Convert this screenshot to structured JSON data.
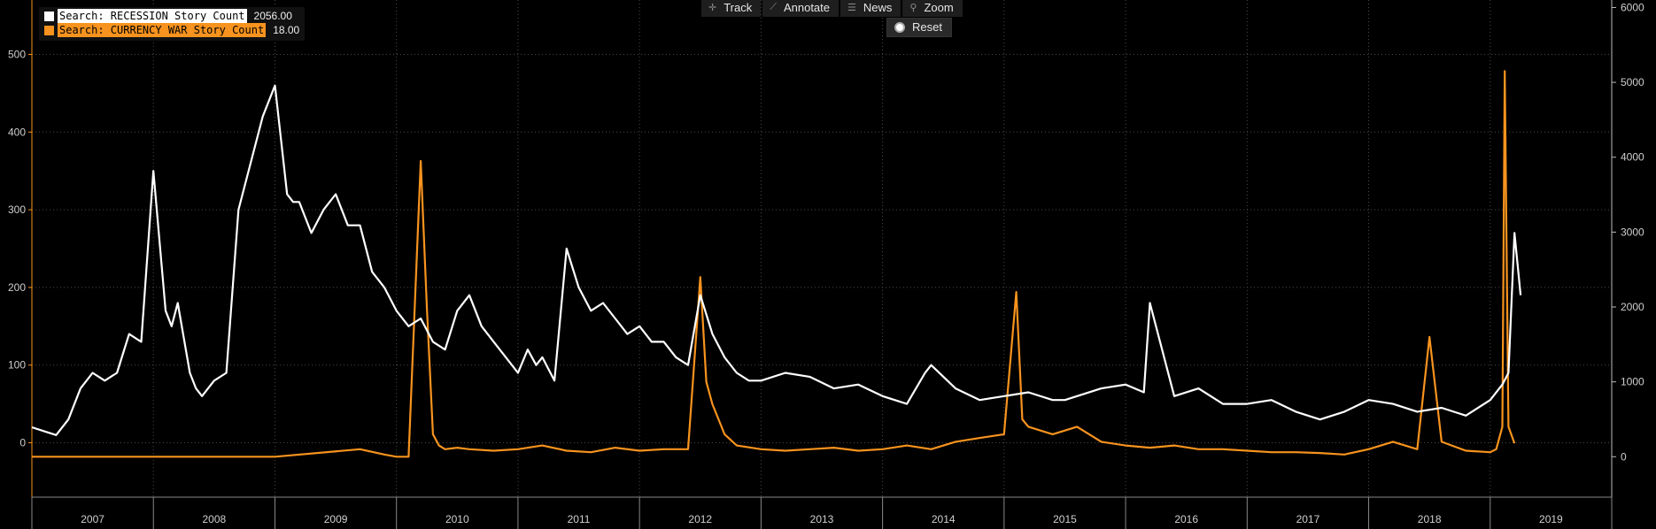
{
  "toolbar": {
    "track_label": "Track",
    "annotate_label": "Annotate",
    "news_label": "News",
    "zoom_label": "Zoom",
    "reset_label": "Reset"
  },
  "legend": {
    "series1_label": "Search: RECESSION Story Count",
    "series1_value": "2056.00",
    "series2_label": "Search: CURRENCY WAR Story Count",
    "series2_value": "18.00"
  },
  "colors": {
    "background": "#000000",
    "recession": "#ffffff",
    "currency_war": "#f7931e",
    "grid": "#5a5a5a"
  },
  "chart_data": {
    "type": "line",
    "title": "",
    "xlabel": "",
    "grid": true,
    "legend_position": "top-left",
    "x_axis": {
      "type": "year",
      "start_year": 2007,
      "end_year": 2019,
      "tick_labels": [
        "2007",
        "2008",
        "2009",
        "2010",
        "2011",
        "2012",
        "2013",
        "2014",
        "2015",
        "2016",
        "2017",
        "2018",
        "2019"
      ]
    },
    "y_left": {
      "label": "",
      "series": "Search: CURRENCY WAR Story Count",
      "ticks": [
        0,
        100,
        200,
        300,
        400,
        500
      ],
      "tick_labels": [
        "0",
        "100",
        "200",
        "300",
        "400",
        "500"
      ],
      "ylim": [
        -70,
        570
      ]
    },
    "y_right": {
      "label": "",
      "series": "Search: RECESSION Story Count",
      "ticks": [
        0,
        1000,
        2000,
        3000,
        4000,
        5000,
        6000
      ],
      "tick_labels": [
        "0",
        "1000",
        "2000",
        "3000",
        "4000",
        "5000",
        "6000"
      ],
      "ylim": [
        -540,
        6100
      ]
    },
    "series": [
      {
        "name": "Search: RECESSION Story Count",
        "axis": "left",
        "color": "#ffffff",
        "x": [
          2007.0,
          2007.1,
          2007.2,
          2007.3,
          2007.4,
          2007.5,
          2007.6,
          2007.7,
          2007.8,
          2007.9,
          2008.0,
          2008.1,
          2008.15,
          2008.2,
          2008.3,
          2008.35,
          2008.4,
          2008.5,
          2008.6,
          2008.7,
          2008.8,
          2008.9,
          2009.0,
          2009.1,
          2009.15,
          2009.2,
          2009.3,
          2009.4,
          2009.5,
          2009.6,
          2009.7,
          2009.8,
          2009.9,
          2010.0,
          2010.1,
          2010.2,
          2010.3,
          2010.4,
          2010.5,
          2010.6,
          2010.7,
          2010.8,
          2010.9,
          2011.0,
          2011.08,
          2011.15,
          2011.2,
          2011.3,
          2011.4,
          2011.5,
          2011.6,
          2011.7,
          2011.8,
          2011.9,
          2012.0,
          2012.1,
          2012.2,
          2012.3,
          2012.4,
          2012.5,
          2012.6,
          2012.7,
          2012.8,
          2012.9,
          2013.0,
          2013.2,
          2013.4,
          2013.6,
          2013.8,
          2014.0,
          2014.2,
          2014.35,
          2014.4,
          2014.6,
          2014.8,
          2015.0,
          2015.2,
          2015.4,
          2015.5,
          2015.6,
          2015.8,
          2016.0,
          2016.15,
          2016.2,
          2016.4,
          2016.6,
          2016.8,
          2017.0,
          2017.2,
          2017.4,
          2017.6,
          2017.8,
          2018.0,
          2018.2,
          2018.4,
          2018.6,
          2018.8,
          2019.0,
          2019.1,
          2019.15,
          2019.2,
          2019.25
        ],
        "values": [
          20,
          15,
          10,
          30,
          70,
          90,
          80,
          90,
          140,
          130,
          350,
          170,
          150,
          180,
          90,
          70,
          60,
          80,
          90,
          300,
          360,
          420,
          460,
          320,
          310,
          310,
          270,
          300,
          320,
          280,
          280,
          220,
          200,
          170,
          150,
          160,
          130,
          120,
          170,
          190,
          150,
          130,
          110,
          90,
          120,
          100,
          110,
          80,
          250,
          200,
          170,
          180,
          160,
          140,
          150,
          130,
          130,
          110,
          100,
          190,
          140,
          110,
          90,
          80,
          80,
          90,
          85,
          70,
          75,
          60,
          50,
          90,
          100,
          70,
          55,
          60,
          65,
          55,
          55,
          60,
          70,
          75,
          65,
          180,
          60,
          70,
          50,
          50,
          55,
          40,
          30,
          40,
          55,
          50,
          40,
          45,
          35,
          55,
          75,
          90,
          270,
          190
        ]
      },
      {
        "name": "Search: CURRENCY WAR Story Count",
        "axis": "right",
        "color": "#f7931e",
        "x": [
          2007.0,
          2008.0,
          2009.0,
          2009.7,
          2009.9,
          2010.0,
          2010.1,
          2010.2,
          2010.25,
          2010.3,
          2010.35,
          2010.4,
          2010.5,
          2010.6,
          2010.8,
          2011.0,
          2011.2,
          2011.4,
          2011.6,
          2011.8,
          2012.0,
          2012.2,
          2012.4,
          2012.5,
          2012.55,
          2012.6,
          2012.7,
          2012.8,
          2013.0,
          2013.2,
          2013.4,
          2013.6,
          2013.8,
          2014.0,
          2014.2,
          2014.4,
          2014.6,
          2014.8,
          2015.0,
          2015.1,
          2015.15,
          2015.2,
          2015.4,
          2015.6,
          2015.8,
          2016.0,
          2016.2,
          2016.4,
          2016.6,
          2016.8,
          2017.0,
          2017.2,
          2017.4,
          2017.6,
          2017.8,
          2018.0,
          2018.2,
          2018.4,
          2018.5,
          2018.6,
          2018.8,
          2019.0,
          2019.05,
          2019.1,
          2019.12,
          2019.15,
          2019.2
        ],
        "values": [
          0,
          0,
          0,
          100,
          30,
          0,
          0,
          3950,
          2000,
          300,
          150,
          100,
          120,
          100,
          80,
          100,
          150,
          80,
          60,
          120,
          80,
          100,
          100,
          2400,
          1000,
          700,
          300,
          150,
          100,
          80,
          100,
          120,
          80,
          100,
          150,
          100,
          200,
          250,
          300,
          2200,
          500,
          400,
          300,
          400,
          200,
          150,
          120,
          150,
          100,
          100,
          80,
          60,
          60,
          50,
          30,
          100,
          200,
          100,
          1600,
          200,
          80,
          60,
          100,
          400,
          5150,
          400,
          180
        ]
      }
    ]
  }
}
